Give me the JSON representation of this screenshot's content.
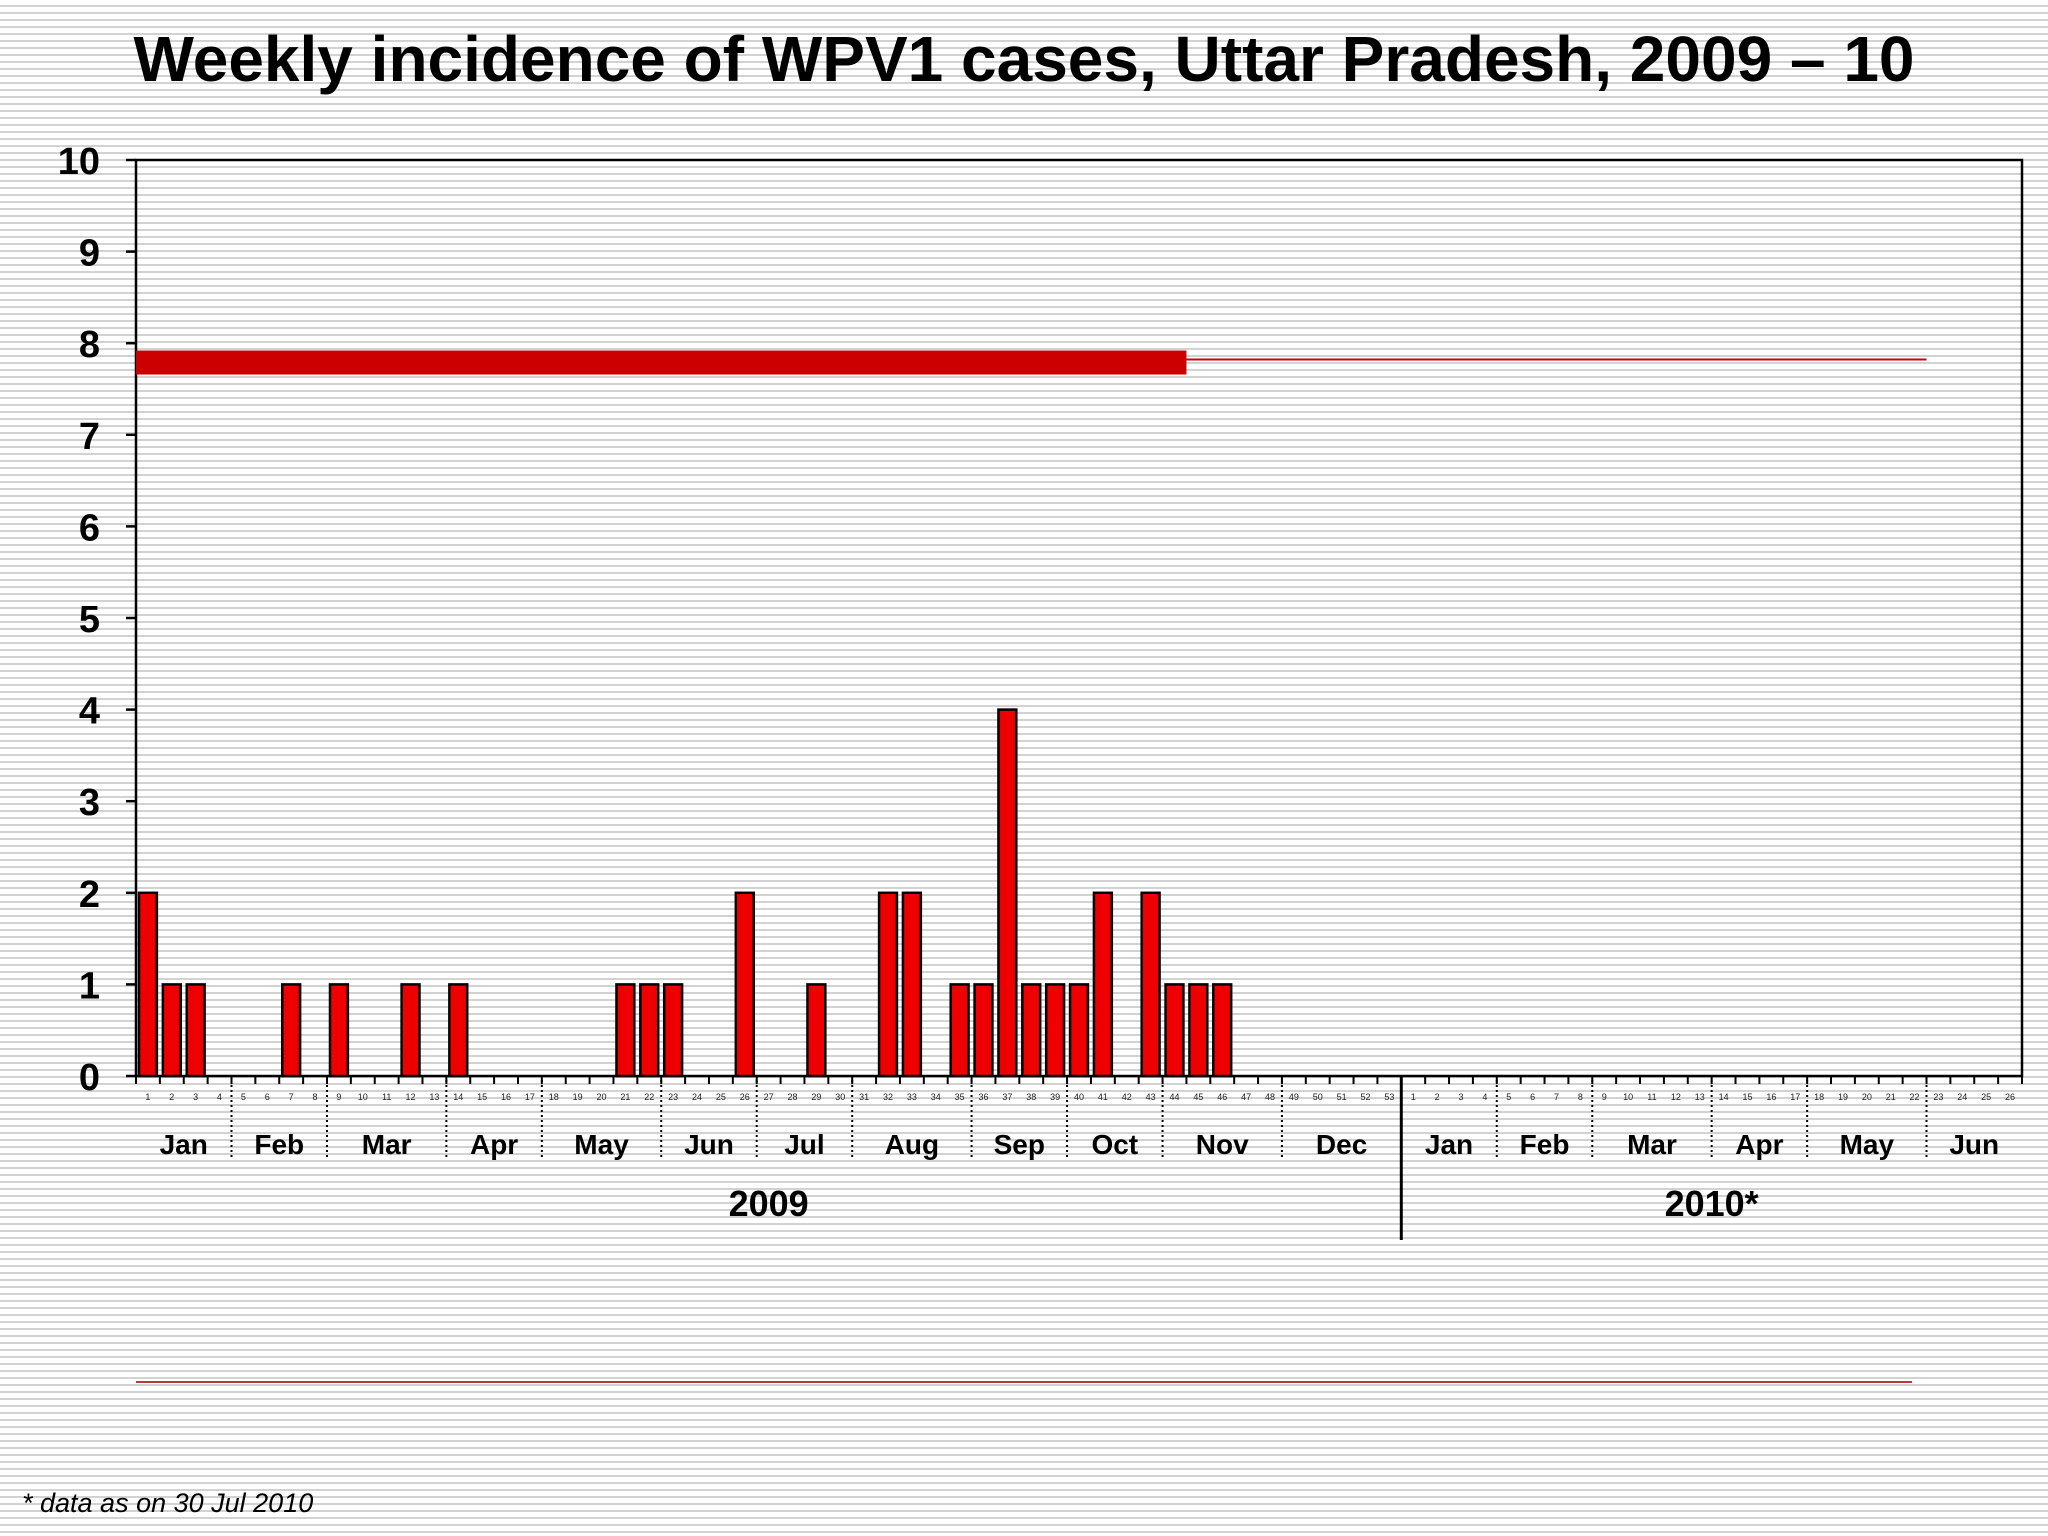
{
  "slide": {
    "title": "Weekly incidence of WPV1 cases, Uttar Pradesh, 2009 – 10",
    "footnote": "* data as on 30 Jul 2010"
  },
  "colors": {
    "bar": "#ee0000",
    "bar_outline": "#000000",
    "band": "#cc0000"
  },
  "chart_data": {
    "type": "bar",
    "title": "Weekly incidence of WPV1 cases, Uttar Pradesh, 2009 – 10",
    "xlabel": "",
    "ylabel": "",
    "ylim": [
      0,
      10
    ],
    "yticks": [
      "0",
      "1",
      "2",
      "3",
      "4",
      "5",
      "6",
      "7",
      "8",
      "9",
      "10"
    ],
    "total_weeks": 79,
    "week_labels": [
      "1",
      "2",
      "3",
      "4",
      "5",
      "6",
      "7",
      "8",
      "9",
      "10",
      "11",
      "12",
      "13",
      "14",
      "15",
      "16",
      "17",
      "18",
      "19",
      "20",
      "21",
      "22",
      "23",
      "24",
      "25",
      "26",
      "27",
      "28",
      "29",
      "30",
      "31",
      "32",
      "33",
      "34",
      "35",
      "36",
      "37",
      "38",
      "39",
      "40",
      "41",
      "42",
      "43",
      "44",
      "45",
      "46",
      "47",
      "48",
      "49",
      "50",
      "51",
      "52",
      "53",
      "1",
      "2",
      "3",
      "4",
      "5",
      "6",
      "7",
      "8",
      "9",
      "10",
      "11",
      "12",
      "13",
      "14",
      "15",
      "16",
      "17",
      "18",
      "19",
      "20",
      "21",
      "22",
      "23",
      "24",
      "25",
      "26"
    ],
    "cases_by_week": [
      {
        "week": 1,
        "value": 2
      },
      {
        "week": 2,
        "value": 1
      },
      {
        "week": 3,
        "value": 1
      },
      {
        "week": 7,
        "value": 1
      },
      {
        "week": 9,
        "value": 1
      },
      {
        "week": 12,
        "value": 1
      },
      {
        "week": 14,
        "value": 1
      },
      {
        "week": 21,
        "value": 1
      },
      {
        "week": 22,
        "value": 1
      },
      {
        "week": 23,
        "value": 1
      },
      {
        "week": 26,
        "value": 2
      },
      {
        "week": 29,
        "value": 1
      },
      {
        "week": 32,
        "value": 2
      },
      {
        "week": 33,
        "value": 2
      },
      {
        "week": 35,
        "value": 1
      },
      {
        "week": 36,
        "value": 1
      },
      {
        "week": 37,
        "value": 4
      },
      {
        "week": 38,
        "value": 1
      },
      {
        "week": 39,
        "value": 1
      },
      {
        "week": 40,
        "value": 1
      },
      {
        "week": 41,
        "value": 2
      },
      {
        "week": 43,
        "value": 2
      },
      {
        "week": 44,
        "value": 1
      },
      {
        "week": 45,
        "value": 1
      },
      {
        "week": 46,
        "value": 1
      }
    ],
    "months": [
      {
        "label": "Jan",
        "start_week": 0,
        "end_week": 4
      },
      {
        "label": "Feb",
        "start_week": 4,
        "end_week": 8
      },
      {
        "label": "Mar",
        "start_week": 8,
        "end_week": 13
      },
      {
        "label": "Apr",
        "start_week": 13,
        "end_week": 17
      },
      {
        "label": "May",
        "start_week": 17,
        "end_week": 22
      },
      {
        "label": "Jun",
        "start_week": 22,
        "end_week": 26
      },
      {
        "label": "Jul",
        "start_week": 26,
        "end_week": 30
      },
      {
        "label": "Aug",
        "start_week": 30,
        "end_week": 35
      },
      {
        "label": "Sep",
        "start_week": 35,
        "end_week": 39
      },
      {
        "label": "Oct",
        "start_week": 39,
        "end_week": 43
      },
      {
        "label": "Nov",
        "start_week": 43,
        "end_week": 48
      },
      {
        "label": "Dec",
        "start_week": 48,
        "end_week": 53
      },
      {
        "label": "Jan",
        "start_week": 53,
        "end_week": 57
      },
      {
        "label": "Feb",
        "start_week": 57,
        "end_week": 61
      },
      {
        "label": "Mar",
        "start_week": 61,
        "end_week": 66
      },
      {
        "label": "Apr",
        "start_week": 66,
        "end_week": 70
      },
      {
        "label": "May",
        "start_week": 70,
        "end_week": 75
      },
      {
        "label": "Jun",
        "start_week": 75,
        "end_week": 79
      }
    ],
    "years": [
      {
        "label": "2009",
        "start_week": 0,
        "end_week": 53
      },
      {
        "label": "2010*",
        "start_week": 53,
        "end_week": 79
      }
    ],
    "reference_band": {
      "value": 7.8,
      "thick_until_week": 44,
      "thin_until_week": 75
    }
  }
}
